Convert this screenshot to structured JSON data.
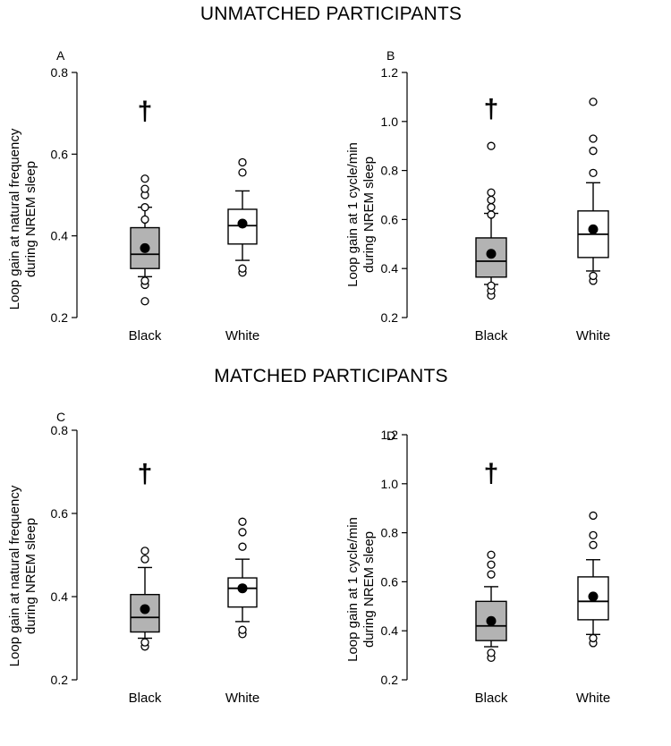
{
  "titles": {
    "top": "UNMATCHED PARTICIPANTS",
    "bottom": "MATCHED PARTICIPANTS"
  },
  "colors": {
    "black_group_fill": "#b3b3b3",
    "white_group_fill": "#ffffff",
    "stroke": "#000000"
  },
  "chart_data": [
    {
      "type": "box",
      "panel": "A",
      "ylabel_line1": "Loop gain at natural frequency",
      "ylabel_line2": "during NREM sleep",
      "ylim": [
        0.2,
        0.8
      ],
      "yticks": [
        0.2,
        0.4,
        0.6,
        0.8
      ],
      "tick_labels": [
        "0.2",
        "0.4",
        "0.6",
        "0.8"
      ],
      "categories": [
        "Black",
        "White"
      ],
      "significance": {
        "symbol": "†",
        "category": "Black",
        "y": 0.71
      },
      "boxes": [
        {
          "name": "Black",
          "fill": "#b3b3b3",
          "whisker_low": 0.3,
          "q1": 0.32,
          "median": 0.355,
          "q3": 0.42,
          "whisker_high": 0.47,
          "mean": 0.37,
          "outliers": [
            0.24,
            0.28,
            0.29,
            0.44,
            0.47,
            0.5,
            0.515,
            0.54
          ]
        },
        {
          "name": "White",
          "fill": "#ffffff",
          "whisker_low": 0.34,
          "q1": 0.38,
          "median": 0.425,
          "q3": 0.465,
          "whisker_high": 0.51,
          "mean": 0.43,
          "outliers": [
            0.31,
            0.32,
            0.555,
            0.58
          ]
        }
      ]
    },
    {
      "type": "box",
      "panel": "B",
      "ylabel_line1": "Loop gain at 1 cycle/min",
      "ylabel_line2": "during NREM sleep",
      "ylim": [
        0.2,
        1.2
      ],
      "yticks": [
        0.2,
        0.4,
        0.6,
        0.8,
        1.0,
        1.2
      ],
      "tick_labels": [
        "0.2",
        "0.4",
        "0.6",
        "0.8",
        "1.0",
        "1.2"
      ],
      "categories": [
        "Black",
        "White"
      ],
      "significance": {
        "symbol": "†",
        "category": "Black",
        "y": 1.06
      },
      "boxes": [
        {
          "name": "Black",
          "fill": "#b3b3b3",
          "whisker_low": 0.335,
          "q1": 0.365,
          "median": 0.43,
          "q3": 0.525,
          "whisker_high": 0.625,
          "mean": 0.46,
          "outliers": [
            0.29,
            0.31,
            0.33,
            0.62,
            0.65,
            0.68,
            0.71,
            0.9
          ]
        },
        {
          "name": "White",
          "fill": "#ffffff",
          "whisker_low": 0.39,
          "q1": 0.445,
          "median": 0.54,
          "q3": 0.635,
          "whisker_high": 0.75,
          "mean": 0.56,
          "outliers": [
            0.35,
            0.37,
            0.79,
            0.88,
            0.93,
            1.08
          ]
        }
      ]
    },
    {
      "type": "box",
      "panel": "C",
      "ylabel_line1": "Loop gain at natural frequency",
      "ylabel_line2": "during NREM sleep",
      "ylim": [
        0.2,
        0.8
      ],
      "yticks": [
        0.2,
        0.4,
        0.6,
        0.8
      ],
      "tick_labels": [
        "0.2",
        "0.4",
        "0.6",
        "0.8"
      ],
      "categories": [
        "Black",
        "White"
      ],
      "significance": {
        "symbol": "†",
        "category": "Black",
        "y": 0.7
      },
      "boxes": [
        {
          "name": "Black",
          "fill": "#b3b3b3",
          "whisker_low": 0.3,
          "q1": 0.315,
          "median": 0.35,
          "q3": 0.405,
          "whisker_high": 0.47,
          "mean": 0.37,
          "outliers": [
            0.28,
            0.29,
            0.49,
            0.51
          ]
        },
        {
          "name": "White",
          "fill": "#ffffff",
          "whisker_low": 0.34,
          "q1": 0.375,
          "median": 0.42,
          "q3": 0.445,
          "whisker_high": 0.49,
          "mean": 0.42,
          "outliers": [
            0.31,
            0.32,
            0.52,
            0.555,
            0.58
          ]
        }
      ]
    },
    {
      "type": "box",
      "panel": "D",
      "ylabel_line1": "Loop gain at 1 cycle/min",
      "ylabel_line2": "during NREM sleep",
      "ylim": [
        0.2,
        1.2
      ],
      "yticks": [
        0.2,
        0.4,
        0.6,
        0.8,
        1.0,
        1.2
      ],
      "tick_labels": [
        "0.2",
        "0.4",
        "0.6",
        "0.8",
        "1.0",
        "1.2"
      ],
      "categories": [
        "Black",
        "White"
      ],
      "significance": {
        "symbol": "†",
        "category": "Black",
        "y": 1.05
      },
      "boxes": [
        {
          "name": "Black",
          "fill": "#b3b3b3",
          "whisker_low": 0.335,
          "q1": 0.36,
          "median": 0.42,
          "q3": 0.52,
          "whisker_high": 0.58,
          "mean": 0.44,
          "outliers": [
            0.29,
            0.31,
            0.63,
            0.67,
            0.71
          ]
        },
        {
          "name": "White",
          "fill": "#ffffff",
          "whisker_low": 0.385,
          "q1": 0.445,
          "median": 0.52,
          "q3": 0.62,
          "whisker_high": 0.69,
          "mean": 0.54,
          "outliers": [
            0.35,
            0.37,
            0.75,
            0.79,
            0.87
          ]
        }
      ]
    }
  ]
}
